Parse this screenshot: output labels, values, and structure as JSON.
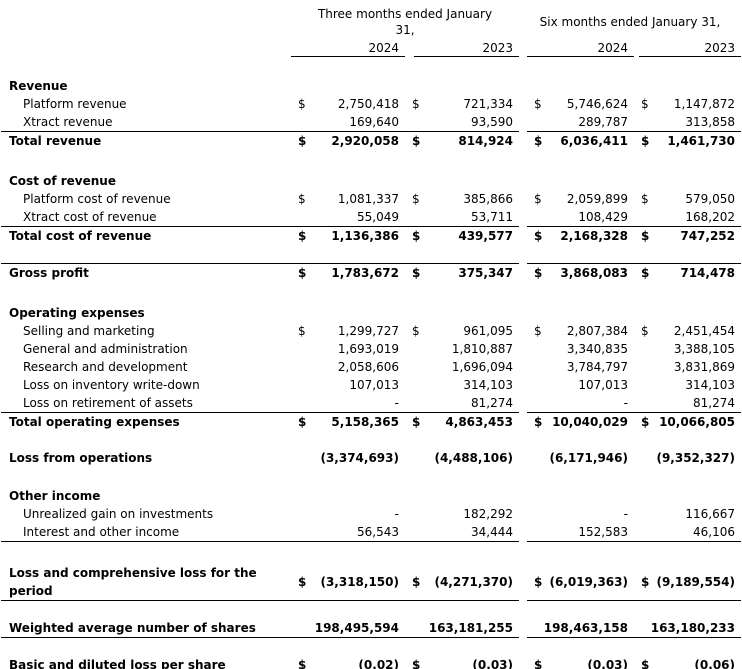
{
  "colors": {
    "background": "#ffffff",
    "text": "#000000",
    "rule": "#000000"
  },
  "header": {
    "groups": [
      {
        "label": "Three months ended January 31,",
        "years": [
          "2024",
          "2023"
        ]
      },
      {
        "label": "Six months ended January 31,",
        "years": [
          "2024",
          "2023"
        ]
      }
    ]
  },
  "table": {
    "rows": [
      {
        "type": "spacer",
        "height": 20
      },
      {
        "type": "section",
        "label": "Revenue"
      },
      {
        "type": "detail",
        "label": "Platform revenue",
        "dollar": true,
        "values": [
          "2,750,418",
          "721,334",
          "5,746,624",
          "1,147,872"
        ]
      },
      {
        "type": "detail",
        "label": "Xtract revenue",
        "values": [
          "169,640",
          "93,590",
          "289,787",
          "313,858"
        ]
      },
      {
        "type": "total",
        "label": "Total revenue",
        "dollar": true,
        "line_above": true,
        "values": [
          "2,920,058",
          "814,924",
          "6,036,411",
          "1,461,730"
        ]
      },
      {
        "type": "spacer",
        "height": 22
      },
      {
        "type": "section",
        "label": "Cost of revenue"
      },
      {
        "type": "detail",
        "label": "Platform cost of revenue",
        "dollar": true,
        "values": [
          "1,081,337",
          "385,866",
          "2,059,899",
          "579,050"
        ]
      },
      {
        "type": "detail",
        "label": "Xtract cost of revenue",
        "values": [
          "55,049",
          "53,711",
          "108,429",
          "168,202"
        ]
      },
      {
        "type": "total",
        "label": "Total cost of revenue",
        "dollar": true,
        "line_above": true,
        "values": [
          "1,136,386",
          "439,577",
          "2,168,328",
          "747,252"
        ]
      },
      {
        "type": "spacer",
        "height": 18
      },
      {
        "type": "total",
        "label": "Gross profit",
        "dollar": true,
        "line_above": true,
        "values": [
          "1,783,672",
          "375,347",
          "3,868,083",
          "714,478"
        ]
      },
      {
        "type": "spacer",
        "height": 22
      },
      {
        "type": "section",
        "label": "Operating expenses"
      },
      {
        "type": "detail",
        "label": "Selling and marketing",
        "dollar": true,
        "values": [
          "1,299,727",
          "961,095",
          "2,807,384",
          "2,451,454"
        ]
      },
      {
        "type": "detail",
        "label": "General and administration",
        "values": [
          "1,693,019",
          "1,810,887",
          "3,340,835",
          "3,388,105"
        ]
      },
      {
        "type": "detail",
        "label": "Research and development",
        "values": [
          "2,058,606",
          "1,696,094",
          "3,784,797",
          "3,831,869"
        ]
      },
      {
        "type": "detail",
        "label": "Loss on inventory write-down",
        "values": [
          "107,013",
          "314,103",
          "107,013",
          "314,103"
        ]
      },
      {
        "type": "detail",
        "label": "Loss on retirement of assets",
        "values": [
          "-",
          "81,274",
          "-",
          "81,274"
        ]
      },
      {
        "type": "total",
        "label": "Total operating expenses",
        "dollar": true,
        "line_above": true,
        "values": [
          "5,158,365",
          "4,863,453",
          "10,040,029",
          "10,066,805"
        ]
      },
      {
        "type": "spacer",
        "height": 16
      },
      {
        "type": "total",
        "label": "Loss from operations",
        "values": [
          "(3,374,693)",
          "(4,488,106)",
          "(6,171,946)",
          "(9,352,327)"
        ]
      },
      {
        "type": "spacer",
        "height": 20
      },
      {
        "type": "section",
        "label": "Other income"
      },
      {
        "type": "detail",
        "label": "Unrealized gain on investments",
        "values": [
          "-",
          "182,292",
          "-",
          "116,667"
        ]
      },
      {
        "type": "detail",
        "label": "Interest and other income",
        "line_below": true,
        "values": [
          "56,543",
          "34,444",
          "152,583",
          "46,106"
        ]
      },
      {
        "type": "spacer",
        "height": 22
      },
      {
        "type": "total",
        "label": "Loss and comprehensive loss for the period",
        "dollar": true,
        "line_below": true,
        "values": [
          "(3,318,150)",
          "(4,271,370)",
          "(6,019,363)",
          "(9,189,554)"
        ]
      },
      {
        "type": "spacer",
        "height": 16
      },
      {
        "type": "total",
        "label": "Weighted average number of shares",
        "line_below": true,
        "values": [
          "198,495,594",
          "163,181,255",
          "198,463,158",
          "163,180,233"
        ]
      },
      {
        "type": "spacer",
        "height": 18
      },
      {
        "type": "total",
        "label": "Basic and diluted loss per share",
        "dollar": true,
        "line_below": true,
        "values": [
          "(0.02)",
          "(0.03)",
          "(0.03)",
          "(0.06)"
        ]
      }
    ]
  }
}
